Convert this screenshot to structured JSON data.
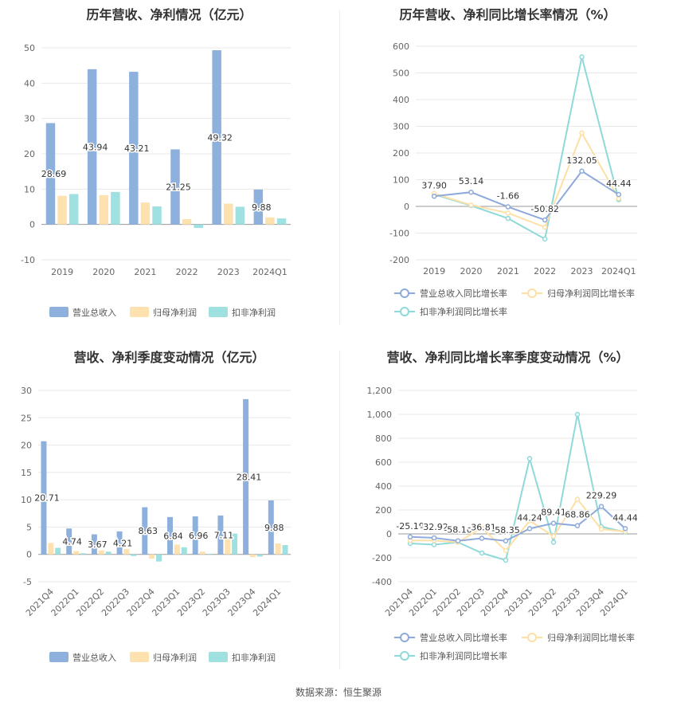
{
  "source_note": "数据来源：恒生聚源",
  "legends": {
    "bar": [
      "营业总收入",
      "归母净利润",
      "扣非净利润"
    ],
    "line": [
      "营业总收入同比增长率",
      "归母净利润同比增长率",
      "扣非净利润同比增长率"
    ]
  },
  "colors": {
    "revenue": "#8eb0dd",
    "netprofit": "#fde2b0",
    "deducted": "#9fe0e0",
    "revenue_line": "#8eaadb",
    "netprofit_line": "#fde0a6",
    "deducted_line": "#8fd9d9"
  },
  "chart_data": [
    {
      "type": "bar",
      "title": "历年营收、净利情况（亿元）",
      "categories": [
        "2019",
        "2020",
        "2021",
        "2022",
        "2023",
        "2024Q1"
      ],
      "ylim": [
        -10,
        50
      ],
      "yticks": [
        -10,
        0,
        10,
        20,
        30,
        40,
        50
      ],
      "series": [
        {
          "name": "营业总收入",
          "values": [
            28.69,
            43.94,
            43.21,
            21.25,
            49.32,
            9.88
          ],
          "labels": [
            "28.69",
            "43.94",
            "43.21",
            "21.25",
            "49.32",
            "9.88"
          ]
        },
        {
          "name": "归母净利润",
          "values": [
            8.1,
            8.3,
            6.2,
            1.5,
            5.9,
            2.0
          ]
        },
        {
          "name": "扣非净利润",
          "values": [
            8.6,
            9.2,
            5.1,
            -1.0,
            5.0,
            1.7
          ]
        }
      ],
      "legend": "bottom"
    },
    {
      "type": "line",
      "title": "历年营收、净利同比增长率情况（%）",
      "categories": [
        "2019",
        "2020",
        "2021",
        "2022",
        "2023",
        "2024Q1"
      ],
      "ylim": [
        -200,
        600
      ],
      "yticks": [
        -200,
        -100,
        0,
        100,
        200,
        300,
        400,
        500,
        600
      ],
      "series": [
        {
          "name": "营业总收入同比增长率",
          "values": [
            37.9,
            53.14,
            -1.66,
            -50.82,
            132.05,
            44.44
          ],
          "labels": [
            "37.90",
            "53.14",
            "-1.66",
            "-50.82",
            "132.05",
            "44.44"
          ]
        },
        {
          "name": "归母净利润同比增长率",
          "values": [
            48,
            5,
            -25,
            -78,
            275,
            30
          ]
        },
        {
          "name": "扣非净利润同比增长率",
          "values": [
            45,
            3,
            -45,
            -122,
            560,
            25
          ]
        }
      ],
      "legend": "bottom"
    },
    {
      "type": "bar",
      "title": "营收、净利季度变动情况（亿元）",
      "categories": [
        "2021Q4",
        "2022Q1",
        "2022Q2",
        "2022Q3",
        "2022Q4",
        "2023Q1",
        "2023Q2",
        "2023Q3",
        "2023Q4",
        "2024Q1"
      ],
      "ylim": [
        -5,
        30
      ],
      "yticks": [
        -5,
        0,
        5,
        10,
        15,
        20,
        25,
        30
      ],
      "series": [
        {
          "name": "营业总收入",
          "values": [
            20.71,
            4.74,
            3.67,
            4.21,
            8.63,
            6.84,
            6.96,
            7.11,
            28.41,
            9.88
          ],
          "labels": [
            "20.71",
            "4.74",
            "3.67",
            "4.21",
            "8.63",
            "6.84",
            "6.96",
            "7.11",
            "28.41",
            "9.88"
          ]
        },
        {
          "name": "归母净利润",
          "values": [
            2.1,
            0.6,
            0.7,
            1.0,
            -0.8,
            1.8,
            0.5,
            3.1,
            -0.5,
            2.0
          ]
        },
        {
          "name": "扣非净利润",
          "values": [
            1.2,
            0.2,
            0.5,
            -0.3,
            -1.3,
            1.3,
            0.1,
            3.8,
            -0.4,
            1.7
          ]
        }
      ],
      "legend": "bottom"
    },
    {
      "type": "line",
      "title": "营收、净利同比增长率季度变动情况（%）",
      "categories": [
        "2021Q4",
        "2022Q1",
        "2022Q2",
        "2022Q3",
        "2022Q4",
        "2023Q1",
        "2023Q2",
        "2023Q3",
        "2023Q4",
        "2024Q1"
      ],
      "ylim": [
        -400,
        1200
      ],
      "yticks": [
        -400,
        -200,
        0,
        200,
        400,
        600,
        800,
        1000,
        1200
      ],
      "ytick_labels": [
        "-400",
        "-200",
        "0",
        "200",
        "400",
        "600",
        "800",
        "1,000",
        "1,200"
      ],
      "series": [
        {
          "name": "营业总收入同比增长率",
          "values": [
            -25.19,
            -32.92,
            -58.1,
            -36.81,
            -58.35,
            44.24,
            89.41,
            68.86,
            229.29,
            44.44
          ],
          "labels": [
            "-25.19",
            "-32.92",
            "-58.10",
            "-36.81",
            "-58.35",
            "44.24",
            "89.41",
            "68.86",
            "229.29",
            "44.44"
          ]
        },
        {
          "name": "归母净利润同比增长率",
          "values": [
            -55,
            -55,
            -70,
            50,
            -140,
            110,
            -20,
            290,
            40,
            20
          ]
        },
        {
          "name": "扣非净利润同比增长率",
          "values": [
            -80,
            -90,
            -70,
            -160,
            -220,
            630,
            -70,
            1000,
            60,
            15
          ]
        }
      ],
      "legend": "bottom"
    }
  ]
}
